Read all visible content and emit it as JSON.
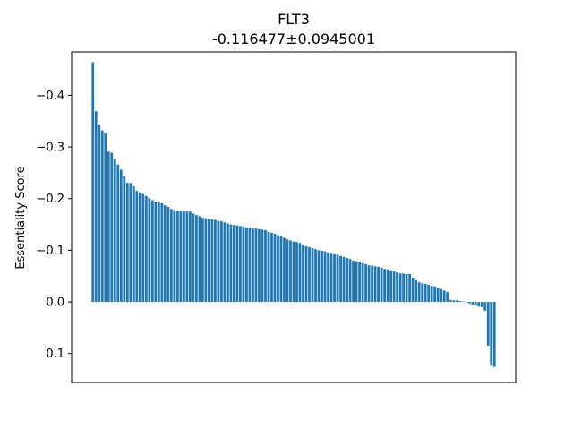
{
  "chart_data": {
    "type": "bar",
    "title": "FLT3",
    "subtitle": "-0.116477±0.0945001",
    "xlabel": "",
    "ylabel": "Essentiality Score",
    "y_inverted": true,
    "ylim": [
      0.156,
      -0.484
    ],
    "yticks": [
      -0.4,
      -0.3,
      -0.2,
      -0.1,
      0.0,
      0.1
    ],
    "ytick_labels": [
      "−0.4",
      "−0.3",
      "−0.2",
      "−0.1",
      "0.0",
      "0.1"
    ],
    "xticks": [],
    "grid": false,
    "legend": "none",
    "bar_color": "#1f77b4",
    "values": [
      -0.464,
      -0.369,
      -0.343,
      -0.332,
      -0.327,
      -0.291,
      -0.289,
      -0.277,
      -0.266,
      -0.256,
      -0.244,
      -0.231,
      -0.23,
      -0.224,
      -0.215,
      -0.212,
      -0.209,
      -0.205,
      -0.201,
      -0.197,
      -0.194,
      -0.193,
      -0.191,
      -0.187,
      -0.184,
      -0.18,
      -0.178,
      -0.177,
      -0.176,
      -0.176,
      -0.175,
      -0.175,
      -0.171,
      -0.168,
      -0.166,
      -0.163,
      -0.162,
      -0.161,
      -0.16,
      -0.159,
      -0.157,
      -0.156,
      -0.154,
      -0.152,
      -0.15,
      -0.149,
      -0.148,
      -0.147,
      -0.146,
      -0.144,
      -0.143,
      -0.142,
      -0.142,
      -0.141,
      -0.14,
      -0.139,
      -0.136,
      -0.134,
      -0.132,
      -0.129,
      -0.127,
      -0.124,
      -0.121,
      -0.119,
      -0.117,
      -0.116,
      -0.114,
      -0.111,
      -0.108,
      -0.106,
      -0.104,
      -0.102,
      -0.1,
      -0.099,
      -0.098,
      -0.096,
      -0.095,
      -0.093,
      -0.091,
      -0.089,
      -0.087,
      -0.085,
      -0.083,
      -0.08,
      -0.079,
      -0.077,
      -0.075,
      -0.073,
      -0.071,
      -0.07,
      -0.069,
      -0.068,
      -0.066,
      -0.064,
      -0.063,
      -0.061,
      -0.059,
      -0.057,
      -0.055,
      -0.055,
      -0.054,
      -0.054,
      -0.047,
      -0.044,
      -0.038,
      -0.036,
      -0.035,
      -0.033,
      -0.031,
      -0.03,
      -0.028,
      -0.025,
      -0.022,
      -0.019,
      -0.004,
      -0.003,
      -0.003,
      -0.002,
      -0.001,
      0.001,
      0.003,
      0.005,
      0.006,
      0.009,
      0.01,
      0.017,
      0.085,
      0.122,
      0.126
    ]
  }
}
